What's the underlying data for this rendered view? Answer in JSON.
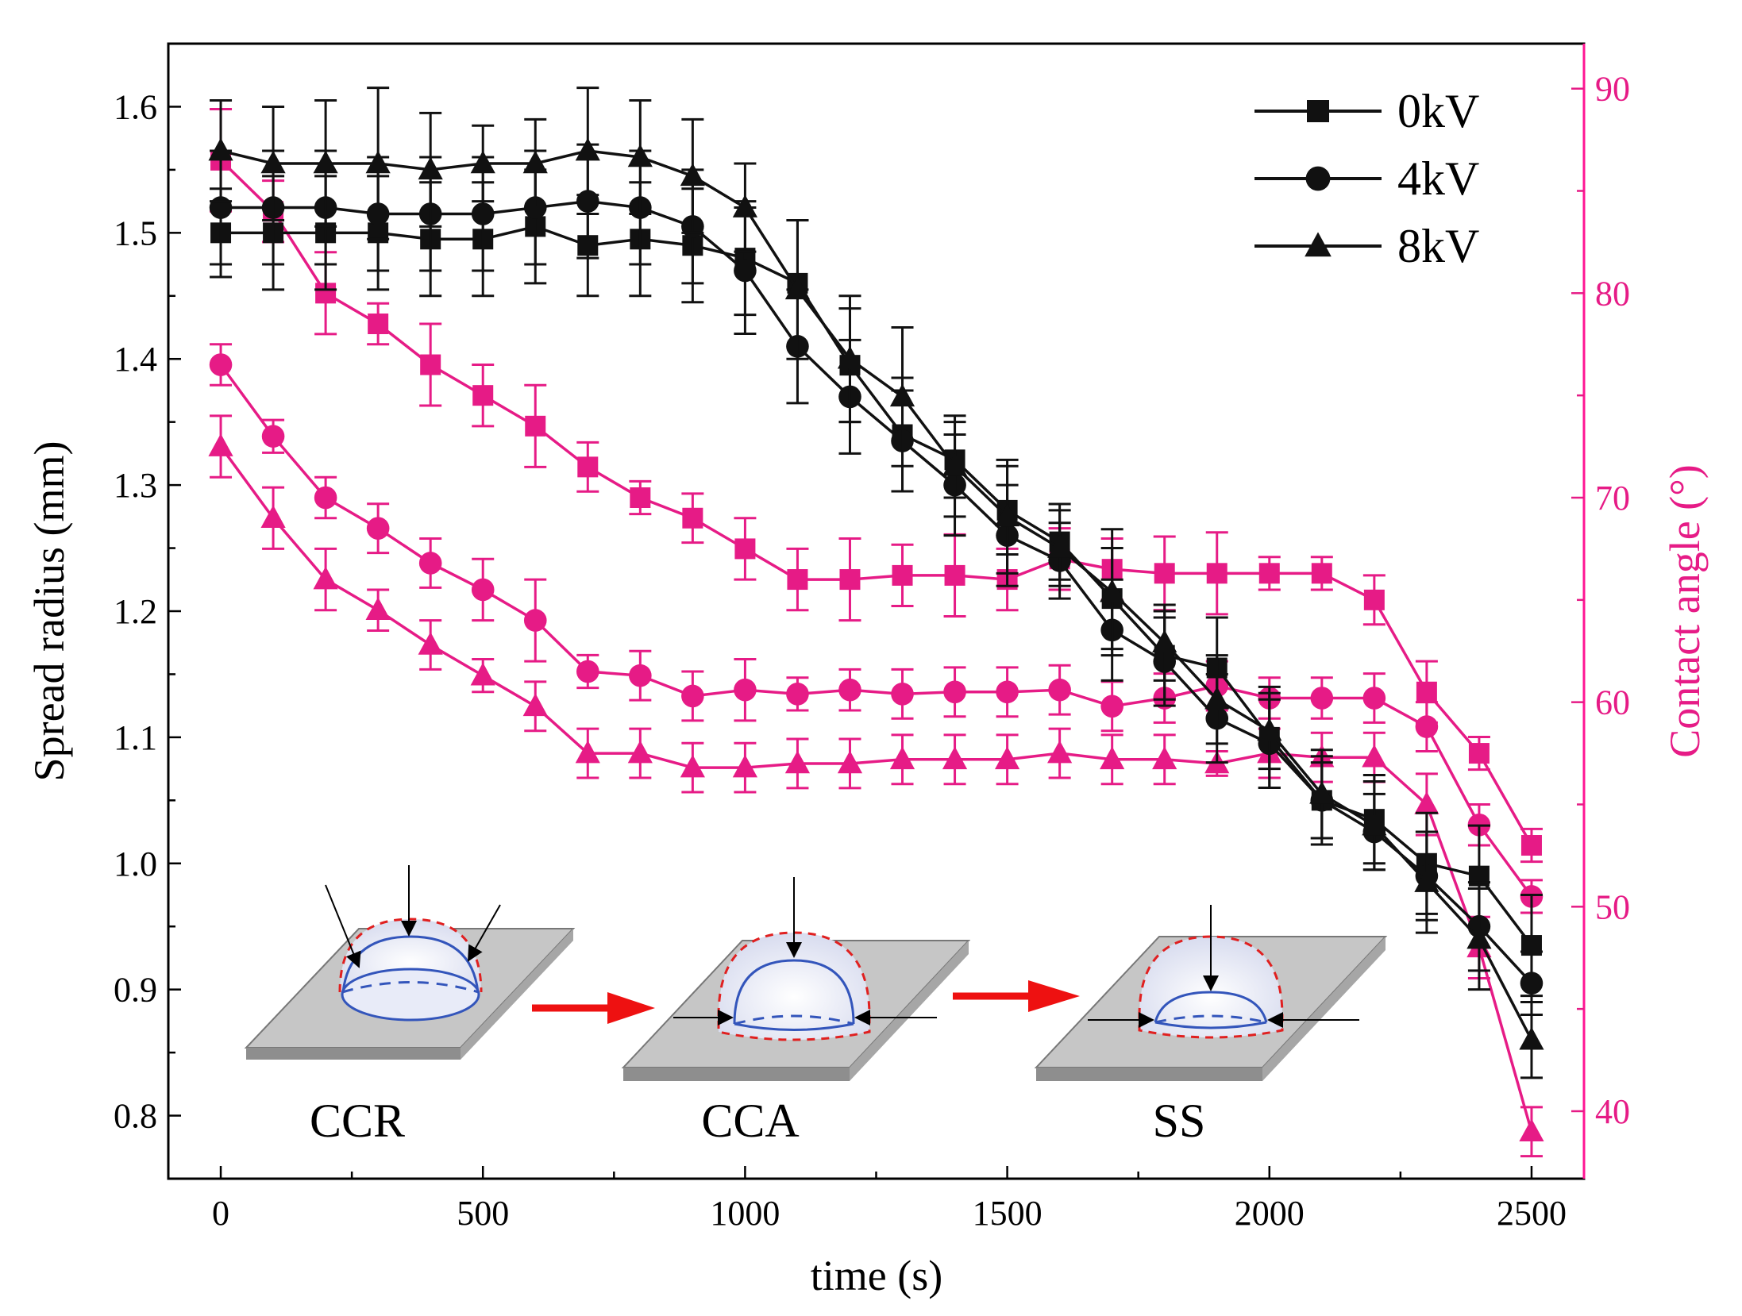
{
  "chart_data": {
    "type": "line",
    "xlabel": "time (s)",
    "ylabel": "Spread radius (mm)",
    "y2label": "Contact angle (°)",
    "xlim": [
      -100,
      2600
    ],
    "ylim": [
      0.75,
      1.65
    ],
    "y2lim": [
      36.7,
      92.2
    ],
    "xticks": [
      0,
      500,
      1000,
      1500,
      2000,
      2500
    ],
    "yticks": [
      0.8,
      0.9,
      1.0,
      1.1,
      1.2,
      1.3,
      1.4,
      1.5,
      1.6
    ],
    "y2ticks": [
      40,
      50,
      60,
      70,
      80,
      90
    ],
    "legend": [
      "0kV",
      "4kV",
      "8kV"
    ],
    "legend_position": "top-right",
    "colors": {
      "radius": "#111111",
      "angle": "#e61b86",
      "axis_right": "#ff1493",
      "arrow": "#ee1111"
    },
    "x": [
      0,
      100,
      200,
      300,
      400,
      500,
      600,
      700,
      800,
      900,
      1000,
      1100,
      1200,
      1300,
      1400,
      1500,
      1600,
      1700,
      1800,
      1900,
      2000,
      2100,
      2200,
      2300,
      2400,
      2500
    ],
    "series": [
      {
        "name": "0kV",
        "axis": "left",
        "marker": "square",
        "values": [
          1.5,
          1.5,
          1.5,
          1.5,
          1.495,
          1.495,
          1.505,
          1.49,
          1.495,
          1.49,
          1.48,
          1.46,
          1.395,
          1.34,
          1.32,
          1.28,
          1.255,
          1.21,
          1.165,
          1.155,
          1.1,
          1.05,
          1.035,
          1.0,
          0.99,
          0.935
        ],
        "errors": [
          0.035,
          0.045,
          0.045,
          0.045,
          0.045,
          0.045,
          0.045,
          0.04,
          0.045,
          0.045,
          0.045,
          0.05,
          0.045,
          0.045,
          0.03,
          0.035,
          0.03,
          0.04,
          0.035,
          0.04,
          0.04,
          0.035,
          0.035,
          0.04,
          0.04,
          0.04
        ]
      },
      {
        "name": "4kV",
        "axis": "left",
        "marker": "circle",
        "values": [
          1.52,
          1.52,
          1.52,
          1.515,
          1.515,
          1.515,
          1.52,
          1.525,
          1.52,
          1.505,
          1.47,
          1.41,
          1.37,
          1.335,
          1.3,
          1.26,
          1.24,
          1.185,
          1.16,
          1.115,
          1.095,
          1.05,
          1.025,
          0.99,
          0.95,
          0.905
        ],
        "errors": [
          0.045,
          0.045,
          0.045,
          0.045,
          0.045,
          0.045,
          0.045,
          0.045,
          0.045,
          0.045,
          0.05,
          0.045,
          0.045,
          0.04,
          0.04,
          0.04,
          0.03,
          0.04,
          0.035,
          0.035,
          0.035,
          0.03,
          0.03,
          0.035,
          0.035,
          0.025
        ]
      },
      {
        "name": "8kV",
        "axis": "left",
        "marker": "triangle",
        "values": [
          1.565,
          1.555,
          1.555,
          1.555,
          1.55,
          1.555,
          1.555,
          1.565,
          1.56,
          1.545,
          1.52,
          1.455,
          1.4,
          1.37,
          1.315,
          1.275,
          1.25,
          1.215,
          1.175,
          1.13,
          1.105,
          1.055,
          1.03,
          0.985,
          0.94,
          0.86
        ],
        "errors": [
          0.04,
          0.045,
          0.05,
          0.06,
          0.045,
          0.03,
          0.035,
          0.05,
          0.045,
          0.045,
          0.035,
          0.055,
          0.05,
          0.055,
          0.04,
          0.045,
          0.03,
          0.05,
          0.03,
          0.035,
          0.03,
          0.035,
          0.035,
          0.04,
          0.04,
          0.03
        ]
      },
      {
        "name": "0kV",
        "axis": "right",
        "marker": "square",
        "values": [
          86.5,
          84.0,
          80.0,
          78.5,
          76.5,
          75.0,
          73.5,
          71.5,
          70.0,
          69.0,
          67.5,
          66.0,
          66.0,
          66.2,
          66.2,
          66.0,
          67.0,
          66.5,
          66.3,
          66.3,
          66.3,
          66.3,
          65.0,
          60.5,
          57.5,
          53.0
        ],
        "errors": [
          2.5,
          1.5,
          2.0,
          1.0,
          2.0,
          1.5,
          2.0,
          1.2,
          0.8,
          1.2,
          1.5,
          1.5,
          2.0,
          1.5,
          2.0,
          1.5,
          1.5,
          1.5,
          1.8,
          2.0,
          0.8,
          0.8,
          1.2,
          1.5,
          0.8,
          0.8
        ]
      },
      {
        "name": "4kV",
        "axis": "right",
        "marker": "circle",
        "values": [
          76.5,
          73.0,
          70.0,
          68.5,
          66.8,
          65.5,
          64.0,
          61.5,
          61.3,
          60.3,
          60.6,
          60.4,
          60.6,
          60.4,
          60.5,
          60.5,
          60.6,
          59.8,
          60.2,
          60.8,
          60.2,
          60.2,
          60.2,
          58.8,
          54.0,
          50.5
        ],
        "errors": [
          1.0,
          0.8,
          1.0,
          1.2,
          1.2,
          1.5,
          2.0,
          0.8,
          1.2,
          1.2,
          1.5,
          0.8,
          1.0,
          1.2,
          1.2,
          1.2,
          1.2,
          1.2,
          1.2,
          1.2,
          1.0,
          1.0,
          1.2,
          1.2,
          1.0,
          0.8
        ]
      },
      {
        "name": "8kV",
        "axis": "right",
        "marker": "triangle",
        "values": [
          72.5,
          69.0,
          66.0,
          64.5,
          62.8,
          61.3,
          59.8,
          57.5,
          57.5,
          56.8,
          56.8,
          57.0,
          57.0,
          57.2,
          57.2,
          57.2,
          57.5,
          57.2,
          57.2,
          57.0,
          57.5,
          57.3,
          57.3,
          55.0,
          48.0,
          39.0
        ],
        "errors": [
          1.5,
          1.5,
          1.5,
          1.0,
          1.2,
          0.8,
          1.2,
          1.2,
          1.2,
          1.2,
          1.2,
          1.2,
          1.2,
          1.2,
          1.2,
          1.2,
          1.2,
          1.2,
          1.2,
          0.6,
          1.2,
          1.2,
          1.2,
          1.5,
          1.5,
          1.2
        ]
      }
    ],
    "inset": {
      "labels": [
        "CCR",
        "CCA",
        "SS"
      ],
      "description": "droplet evaporation modes"
    }
  }
}
